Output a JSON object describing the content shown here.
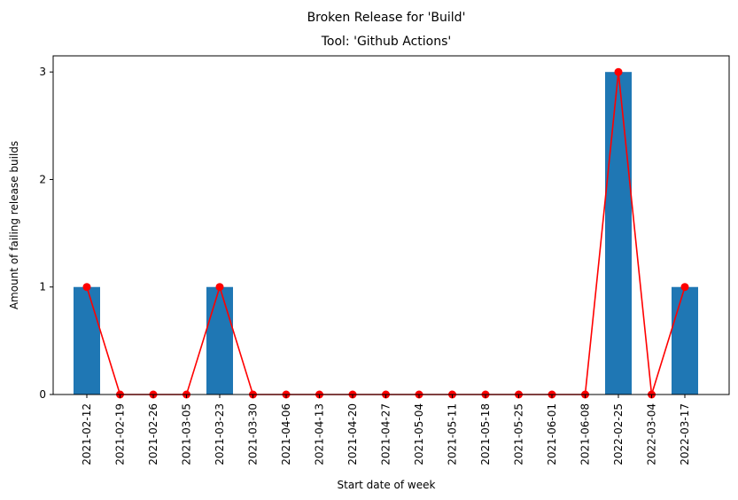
{
  "chart_data": {
    "type": "bar",
    "title": "Broken Release for 'Build'",
    "subtitle": "Tool: 'Github Actions'",
    "xlabel": "Start date of week",
    "ylabel": "Amount of failing release builds",
    "categories": [
      "2021-02-12",
      "2021-02-19",
      "2021-02-26",
      "2021-03-05",
      "2021-03-23",
      "2021-03-30",
      "2021-04-06",
      "2021-04-13",
      "2021-04-20",
      "2021-04-27",
      "2021-05-04",
      "2021-05-11",
      "2021-05-18",
      "2021-05-25",
      "2021-06-01",
      "2021-06-08",
      "2022-02-25",
      "2022-03-04",
      "2022-03-17"
    ],
    "series": [
      {
        "type": "bar",
        "values": [
          1,
          0,
          0,
          0,
          1,
          0,
          0,
          0,
          0,
          0,
          0,
          0,
          0,
          0,
          0,
          0,
          3,
          0,
          1
        ],
        "color": "#1f77b4"
      },
      {
        "type": "line",
        "values": [
          1,
          0,
          0,
          0,
          1,
          0,
          0,
          0,
          0,
          0,
          0,
          0,
          0,
          0,
          0,
          0,
          3,
          0,
          1
        ],
        "color": "#ff0000",
        "marker": "circle"
      }
    ],
    "ylim": [
      0,
      3.15
    ],
    "yticks": [
      0,
      1,
      2,
      3
    ],
    "grid": false,
    "legend": "none"
  }
}
